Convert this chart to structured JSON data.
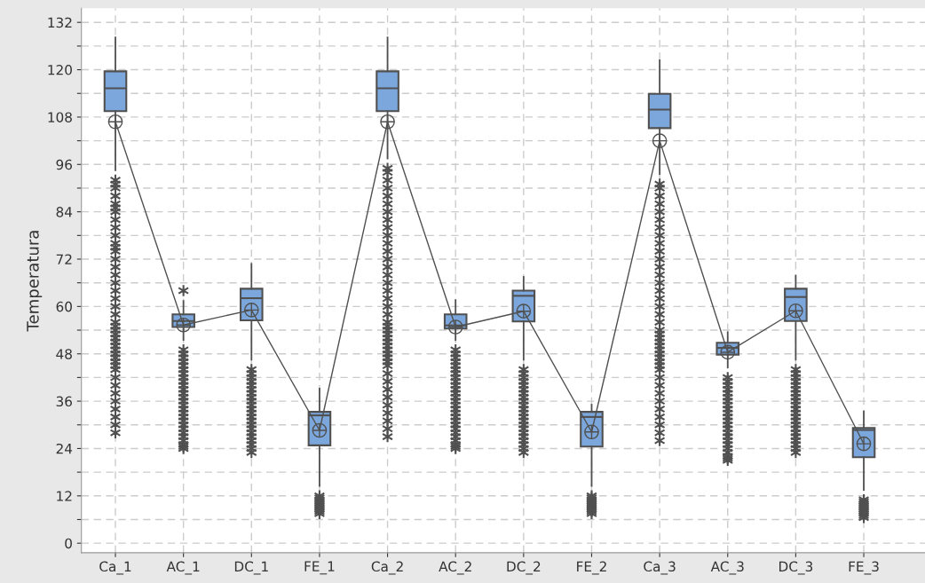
{
  "chart_data": {
    "type": "box",
    "ylabel": "Temperatura",
    "categories": [
      "Ca_1",
      "AC_1",
      "DC_1",
      "FE_1",
      "Ca_2",
      "AC_2",
      "DC_2",
      "FE_2",
      "Ca_3",
      "AC_3",
      "DC_3",
      "FE_3"
    ],
    "color": "#7ba7dc",
    "marker": "star",
    "grid": true,
    "ylim": [
      -2.4,
      135.6
    ],
    "yticks": [
      0,
      {
        "value": 6,
        "label": null
      },
      12,
      {
        "value": 18,
        "label": null
      },
      24,
      {
        "value": 30,
        "label": null
      },
      36,
      {
        "value": 42,
        "label": null
      },
      48,
      {
        "value": 54,
        "label": null
      },
      60,
      {
        "value": 66,
        "label": null
      },
      72,
      {
        "value": 78,
        "label": null
      },
      84,
      {
        "value": 90,
        "label": null
      },
      96,
      {
        "value": 102,
        "label": null
      },
      108,
      {
        "value": 114,
        "label": null
      },
      120,
      {
        "value": 126,
        "label": null
      },
      132
    ],
    "boxes": [
      {
        "low": 94.5,
        "q1": 109.5,
        "median": 115.3,
        "q3": 119.6,
        "high": 128.2,
        "outliers": [
          28,
          30,
          32,
          34,
          36,
          38,
          40,
          42,
          44,
          45,
          46,
          47,
          48,
          49,
          50,
          51,
          52,
          53,
          54,
          55,
          56,
          58,
          60,
          62,
          64,
          66,
          68,
          70,
          72,
          74,
          75,
          76,
          78,
          80,
          82,
          84,
          85,
          86,
          88,
          90,
          91,
          92
        ]
      },
      {
        "low": 51.5,
        "q1": 54.8,
        "median": 56.3,
        "q3": 58,
        "high": 61.4,
        "outliers": [
          24,
          24.5,
          25,
          26,
          27,
          28,
          29,
          30,
          31,
          32,
          33,
          34,
          35,
          36,
          37,
          38,
          39,
          40,
          41,
          42,
          43,
          44,
          45,
          46,
          47,
          48,
          49,
          64
        ]
      },
      {
        "low": 46.5,
        "q1": 56.5,
        "median": 62.1,
        "q3": 64.5,
        "high": 70.8,
        "outliers": [
          23,
          24,
          25,
          26,
          27,
          28,
          29,
          30,
          31,
          32,
          33,
          34,
          35,
          36,
          37,
          38,
          39,
          40,
          41,
          42,
          43,
          44
        ]
      },
      {
        "low": 14.5,
        "q1": 24.8,
        "median": 32.4,
        "q3": 33.3,
        "high": 39.2,
        "outliers": [
          7.5,
          8,
          8.5,
          9,
          9.5,
          10,
          10.5,
          11,
          11.5,
          12
        ]
      },
      {
        "low": 97.5,
        "q1": 109.5,
        "median": 115.3,
        "q3": 119.6,
        "high": 128.2,
        "outliers": [
          27,
          29,
          31,
          33,
          35,
          37,
          39,
          41,
          43,
          45,
          46,
          47,
          48,
          49,
          50,
          51,
          52,
          53,
          54,
          55,
          56,
          58,
          60,
          62,
          64,
          66,
          68,
          70,
          72,
          74,
          76,
          78,
          80,
          82,
          84,
          86,
          88,
          90,
          92,
          94,
          95
        ]
      },
      {
        "low": 51.5,
        "q1": 54.4,
        "median": 55.2,
        "q3": 58,
        "high": 61.6,
        "outliers": [
          24,
          24.5,
          25,
          26,
          27,
          28,
          29,
          30,
          31,
          32,
          33,
          34,
          35,
          36,
          37,
          38,
          39,
          40,
          41,
          42,
          43,
          44,
          45,
          46,
          47,
          48,
          49
        ]
      },
      {
        "low": 46.5,
        "q1": 56.2,
        "median": 62.7,
        "q3": 64,
        "high": 67.5,
        "outliers": [
          23,
          24,
          25,
          26,
          27,
          28,
          29,
          30,
          31,
          32,
          33,
          34,
          35,
          36,
          37,
          38,
          39,
          40,
          41,
          42,
          43,
          44
        ]
      },
      {
        "low": 14.5,
        "q1": 24.5,
        "median": 32,
        "q3": 33.3,
        "high": 35.1,
        "outliers": [
          7.5,
          8,
          8.5,
          9,
          9.5,
          10,
          10.5,
          11,
          11.5,
          12
        ]
      },
      {
        "low": 93.5,
        "q1": 105.2,
        "median": 109.9,
        "q3": 113.9,
        "high": 122.4,
        "outliers": [
          26,
          28,
          30,
          32,
          34,
          36,
          38,
          40,
          42,
          44,
          45,
          46,
          47,
          48,
          49,
          50,
          51,
          52,
          53,
          54,
          56,
          58,
          60,
          62,
          64,
          66,
          68,
          70,
          72,
          74,
          76,
          78,
          80,
          82,
          84,
          86,
          88,
          90,
          91
        ]
      },
      {
        "low": 44.5,
        "q1": 47.8,
        "median": 49.5,
        "q3": 50.8,
        "high": 53.5,
        "outliers": [
          21,
          21.5,
          22,
          23,
          24,
          25,
          26,
          27,
          28,
          29,
          30,
          31,
          32,
          33,
          34,
          35,
          36,
          37,
          38,
          39,
          40,
          41,
          42
        ]
      },
      {
        "low": 46.5,
        "q1": 56.3,
        "median": 62.4,
        "q3": 64.5,
        "high": 67.8,
        "outliers": [
          23,
          24,
          25,
          26,
          27,
          28,
          29,
          30,
          31,
          32,
          33,
          34,
          35,
          36,
          37,
          38,
          39,
          40,
          41,
          42,
          43,
          44
        ]
      },
      {
        "low": 13.5,
        "q1": 21.8,
        "median": 28.7,
        "q3": 29.2,
        "high": 33.4,
        "outliers": [
          6.5,
          7,
          7.5,
          8,
          8.5,
          9,
          9.5,
          10,
          10.5,
          11
        ]
      }
    ],
    "series": [
      {
        "type": "line",
        "color": "#505050",
        "marker": "circle",
        "values": [
          106.8,
          55.3,
          59.1,
          28.6,
          106.8,
          54.8,
          58.8,
          28.2,
          102,
          48.4,
          58.9,
          25.2
        ]
      }
    ]
  }
}
